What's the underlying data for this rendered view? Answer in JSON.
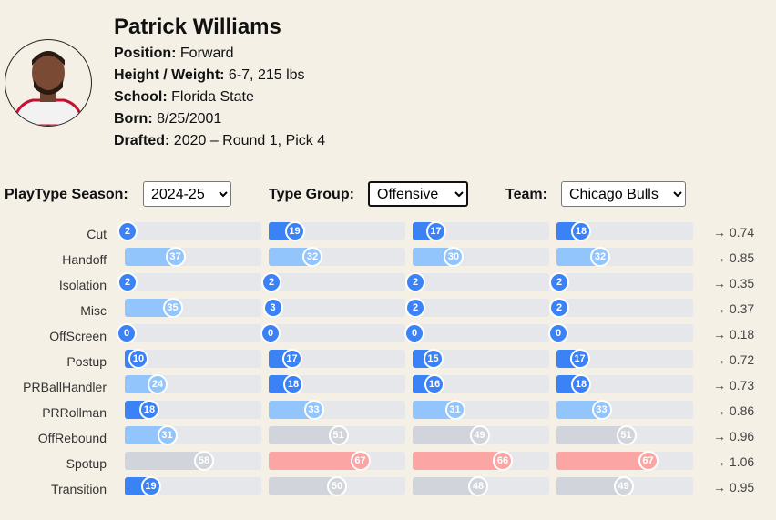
{
  "player": {
    "name": "Patrick Williams",
    "position_label": "Position:",
    "position": "Forward",
    "hw_label": "Height / Weight:",
    "hw": "6-7, 215 lbs",
    "school_label": "School:",
    "school": "Florida State",
    "born_label": "Born:",
    "born": "8/25/2001",
    "drafted_label": "Drafted:",
    "drafted": "2020 – Round 1, Pick 4"
  },
  "filters": {
    "season_label": "PlayType Season:",
    "season": "2024-25",
    "group_label": "Type Group:",
    "group": "Offensive",
    "team_label": "Team:",
    "team": "Chicago Bulls"
  },
  "colors": {
    "low": "#3b82f6",
    "mid_low": "#93c5fd",
    "mid": "#d1d5db",
    "high": "#fca5a5",
    "track": "#e5e7eb"
  },
  "rows": [
    {
      "label": "Cut",
      "values": [
        2,
        19,
        17,
        18
      ],
      "ratio": "→ 0.74"
    },
    {
      "label": "Handoff",
      "values": [
        37,
        32,
        30,
        32
      ],
      "ratio": "→ 0.85"
    },
    {
      "label": "Isolation",
      "values": [
        2,
        2,
        2,
        2
      ],
      "ratio": "→ 0.35"
    },
    {
      "label": "Misc",
      "values": [
        35,
        3,
        2,
        2
      ],
      "ratio": "→ 0.37"
    },
    {
      "label": "OffScreen",
      "values": [
        0,
        0,
        0,
        0
      ],
      "ratio": "→ 0.18"
    },
    {
      "label": "Postup",
      "values": [
        10,
        17,
        15,
        17
      ],
      "ratio": "→ 0.72"
    },
    {
      "label": "PRBallHandler",
      "values": [
        24,
        18,
        16,
        18
      ],
      "ratio": "→ 0.73"
    },
    {
      "label": "PRRollman",
      "values": [
        18,
        33,
        31,
        33
      ],
      "ratio": "→ 0.86"
    },
    {
      "label": "OffRebound",
      "values": [
        31,
        51,
        49,
        51
      ],
      "ratio": "→ 0.96"
    },
    {
      "label": "Spotup",
      "values": [
        58,
        67,
        66,
        67
      ],
      "ratio": "→ 1.06"
    },
    {
      "label": "Transition",
      "values": [
        19,
        50,
        48,
        49
      ],
      "ratio": "→ 0.95"
    }
  ]
}
